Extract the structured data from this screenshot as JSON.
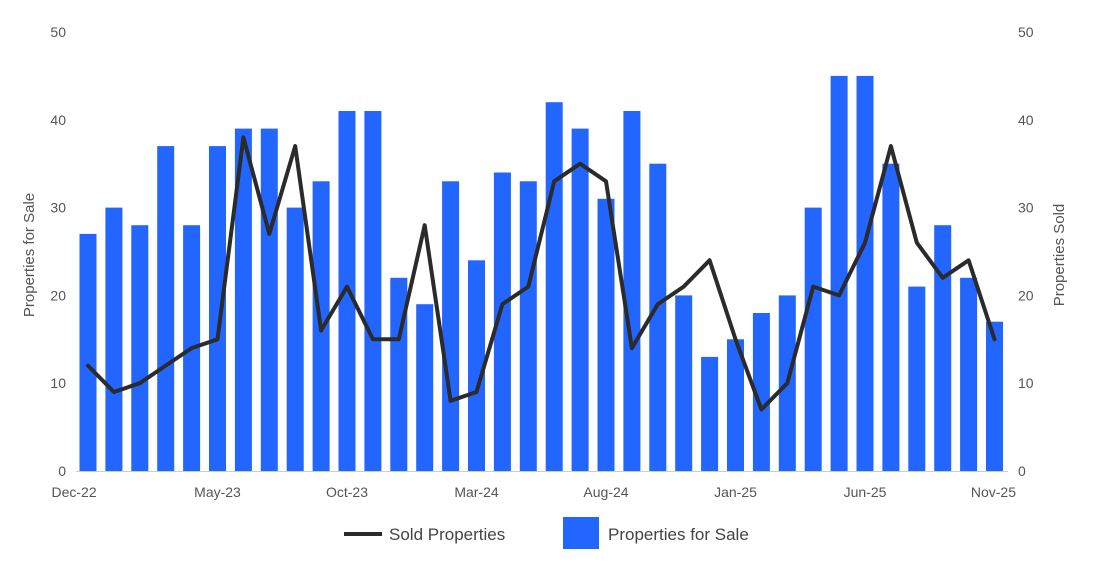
{
  "chart_data": {
    "type": "bar",
    "categories": [
      "Dec-22",
      "Jan-23",
      "Feb-23",
      "Mar-23",
      "Apr-23",
      "May-23",
      "Jun-23",
      "Jul-23",
      "Aug-23",
      "Sep-23",
      "Oct-23",
      "Nov-23",
      "Dec-23",
      "Jan-24",
      "Feb-24",
      "Mar-24",
      "Apr-24",
      "May-24",
      "Jun-24",
      "Jul-24",
      "Aug-24",
      "Sep-24",
      "Oct-24",
      "Nov-24",
      "Dec-24",
      "Jan-25",
      "Feb-25",
      "Mar-25",
      "Apr-25",
      "May-25",
      "Jun-25",
      "Jul-25",
      "Aug-25",
      "Sep-25",
      "Oct-25",
      "Nov-25"
    ],
    "x_tick_labels": [
      "Dec-22",
      "May-23",
      "Oct-23",
      "Mar-24",
      "Aug-24",
      "Jan-25",
      "Jun-25",
      "Nov-25"
    ],
    "series": [
      {
        "name": "Properties for Sale",
        "type": "bar",
        "axis": "left",
        "color": "#2266ff",
        "values": [
          27,
          30,
          28,
          37,
          28,
          37,
          39,
          39,
          30,
          33,
          41,
          41,
          22,
          19,
          33,
          24,
          34,
          33,
          42,
          39,
          31,
          41,
          35,
          20,
          13,
          15,
          18,
          20,
          30,
          45,
          45,
          35,
          21,
          28,
          22,
          17
        ]
      },
      {
        "name": "Sold Properties",
        "type": "line",
        "axis": "right",
        "color": "#2b2b2b",
        "values": [
          12,
          9,
          10,
          12,
          14,
          15,
          38,
          27,
          37,
          16,
          21,
          15,
          15,
          28,
          8,
          9,
          19,
          21,
          33,
          35,
          33,
          14,
          19,
          21,
          24,
          15,
          7,
          10,
          21,
          20,
          26,
          37,
          26,
          22,
          24,
          15
        ]
      }
    ],
    "ylabel_left": "Properties for Sale",
    "ylabel_right": "Properties Sold",
    "ylim_left": [
      0,
      50
    ],
    "ylim_right": [
      0,
      50
    ],
    "y_ticks": [
      0,
      10,
      20,
      30,
      40,
      50
    ],
    "grid": false,
    "legend_position": "bottom"
  },
  "legend": {
    "line_label": "Sold Properties",
    "bar_label": "Properties for Sale"
  }
}
